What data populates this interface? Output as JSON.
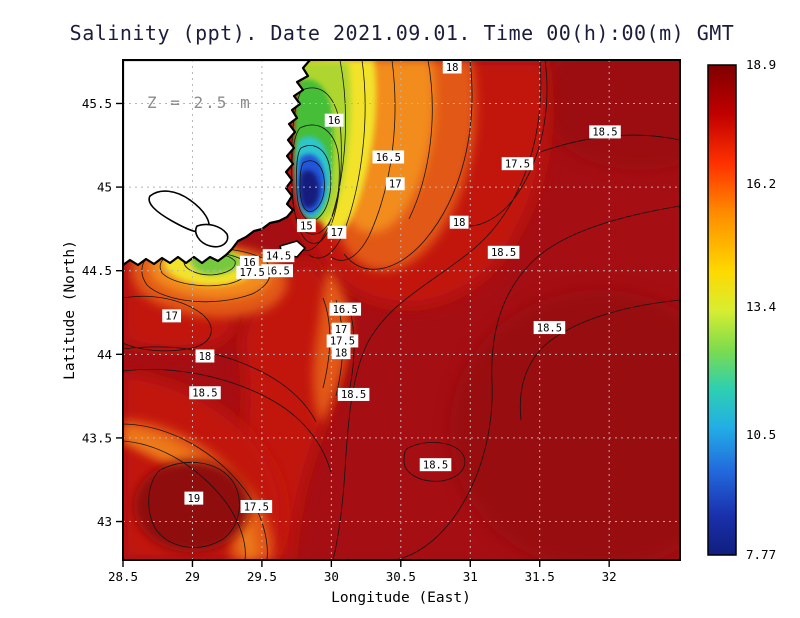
{
  "title": "Salinity (ppt). Date 2021.09.01. Time 00(h):00(m) GMT",
  "annotation": "Z = 2.5 m",
  "axes": {
    "x_label": "Longitude (East)",
    "y_label": "Latitude (North)"
  },
  "chart_data": {
    "type": "heatmap",
    "title": "Salinity (ppt). Date 2021.09.01. Time 00(h):00(m) GMT",
    "variable": "Salinity",
    "units": "ppt",
    "date": "2021.09.01",
    "time": "00(h):00(m) GMT",
    "depth_label": "Z = 2.5 m",
    "xlabel": "Longitude (East)",
    "ylabel": "Latitude (North)",
    "xlim": [
      28.5,
      32.51
    ],
    "ylim": [
      42.77,
      45.76
    ],
    "grid": "dashed",
    "x_ticks": [
      {
        "value": 28.5,
        "label": "28.5"
      },
      {
        "value": 29,
        "label": "29"
      },
      {
        "value": 29.5,
        "label": "29.5"
      },
      {
        "value": 30,
        "label": "30"
      },
      {
        "value": 30.5,
        "label": "30.5"
      },
      {
        "value": 31,
        "label": "31"
      },
      {
        "value": 31.5,
        "label": "31.5"
      },
      {
        "value": 32,
        "label": "32"
      }
    ],
    "y_ticks": [
      {
        "value": 45.5,
        "label": "45.5"
      },
      {
        "value": 45,
        "label": "45"
      },
      {
        "value": 44.5,
        "label": "44.5"
      },
      {
        "value": 44,
        "label": "44"
      },
      {
        "value": 43.5,
        "label": "43.5"
      },
      {
        "value": 43,
        "label": "43"
      }
    ],
    "colorbar": {
      "min": 7.77,
      "max": 18.9,
      "colormap": "jet",
      "tick_values": [
        18.9,
        16.2,
        13.4,
        10.5,
        7.77
      ],
      "tick_labels": [
        "18.9",
        "16.2",
        "13.4",
        "10.5",
        "7.77"
      ],
      "gradient": [
        {
          "offset": 0,
          "color": "#7F0000"
        },
        {
          "offset": 0.1,
          "color": "#C00000"
        },
        {
          "offset": 0.2,
          "color": "#FF3000"
        },
        {
          "offset": 0.3,
          "color": "#FF8A00"
        },
        {
          "offset": 0.42,
          "color": "#FFD800"
        },
        {
          "offset": 0.5,
          "color": "#D8EE30"
        },
        {
          "offset": 0.58,
          "color": "#7EDC4C"
        },
        {
          "offset": 0.66,
          "color": "#2ED0B0"
        },
        {
          "offset": 0.74,
          "color": "#22AEE6"
        },
        {
          "offset": 0.83,
          "color": "#2268DC"
        },
        {
          "offset": 0.92,
          "color": "#1A30AC"
        },
        {
          "offset": 1,
          "color": "#101E7F"
        }
      ]
    },
    "contour_labels": [
      {
        "value": "18",
        "lon": 30.87,
        "lat": 45.74
      },
      {
        "value": "16",
        "lon": 30.02,
        "lat": 45.4
      },
      {
        "value": "18.5",
        "lon": 31.97,
        "lat": 45.33
      },
      {
        "value": "16.5",
        "lon": 30.41,
        "lat": 45.18
      },
      {
        "value": "17.5",
        "lon": 31.34,
        "lat": 45.14
      },
      {
        "value": "17",
        "lon": 30.46,
        "lat": 45.02
      },
      {
        "value": "18",
        "lon": 30.92,
        "lat": 44.79
      },
      {
        "value": "15",
        "lon": 29.82,
        "lat": 44.77
      },
      {
        "value": "17",
        "lon": 30.04,
        "lat": 44.73
      },
      {
        "value": "18.5",
        "lon": 31.24,
        "lat": 44.61
      },
      {
        "value": "14.5",
        "lon": 29.62,
        "lat": 44.59
      },
      {
        "value": "16",
        "lon": 29.41,
        "lat": 44.55
      },
      {
        "value": "16.5",
        "lon": 29.61,
        "lat": 44.5
      },
      {
        "value": "17.5",
        "lon": 29.43,
        "lat": 44.49
      },
      {
        "value": "16.5",
        "lon": 30.1,
        "lat": 44.27
      },
      {
        "value": "17",
        "lon": 28.85,
        "lat": 44.23
      },
      {
        "value": "18.5",
        "lon": 31.57,
        "lat": 44.16
      },
      {
        "value": "17",
        "lon": 30.07,
        "lat": 44.15
      },
      {
        "value": "17.5",
        "lon": 30.08,
        "lat": 44.08
      },
      {
        "value": "18",
        "lon": 30.07,
        "lat": 44.01
      },
      {
        "value": "18",
        "lon": 29.09,
        "lat": 43.99
      },
      {
        "value": "18.5",
        "lon": 29.09,
        "lat": 43.77
      },
      {
        "value": "18.5",
        "lon": 30.16,
        "lat": 43.76
      },
      {
        "value": "18.5",
        "lon": 30.75,
        "lat": 43.34
      },
      {
        "value": "19",
        "lon": 29.01,
        "lat": 43.14
      },
      {
        "value": "17.5",
        "lon": 29.46,
        "lat": 43.09
      }
    ]
  }
}
